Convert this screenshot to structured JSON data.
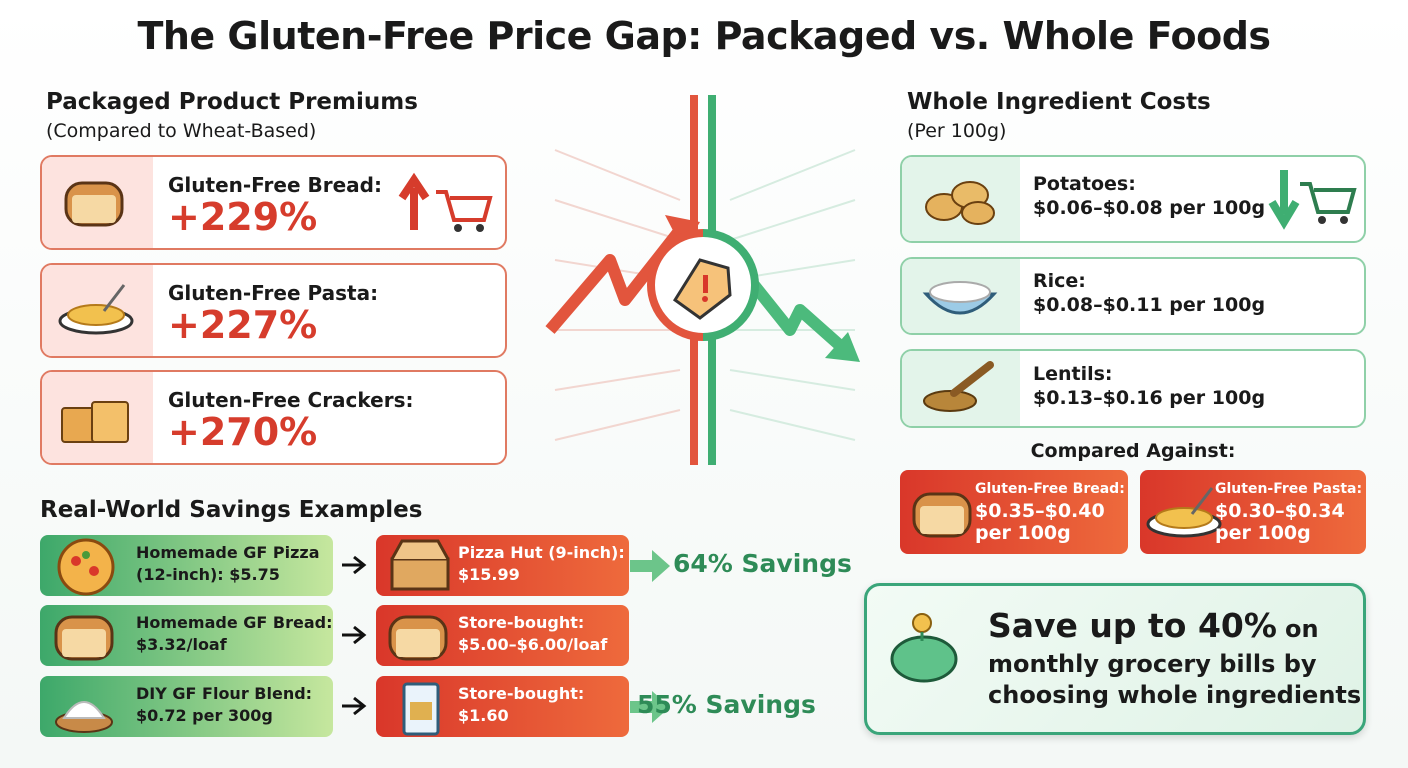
{
  "title": "The Gluten-Free Price Gap: Packaged vs. Whole Foods",
  "packaged": {
    "heading": "Packaged Product Premiums",
    "subheading": "(Compared to Wheat-Based)",
    "items": [
      {
        "label": "Gluten-Free Bread:",
        "premium": "+229%"
      },
      {
        "label": "Gluten-Free Pasta:",
        "premium": "+227%"
      },
      {
        "label": "Gluten-Free Crackers:",
        "premium": "+270%"
      }
    ]
  },
  "whole": {
    "heading": "Whole Ingredient Costs",
    "subheading": "(Per 100g)",
    "items": [
      {
        "name": "Potatoes:",
        "cost": "$0.06–$0.08 per 100g"
      },
      {
        "name": "Rice:",
        "cost": "$0.08–$0.11 per 100g"
      },
      {
        "name": "Lentils:",
        "cost": "$0.13–$0.16 per 100g"
      }
    ]
  },
  "compared": {
    "heading": "Compared Against:",
    "items": [
      {
        "name": "Gluten-Free Bread:",
        "cost": [
          "$0.35–$0.40",
          "per 100g"
        ]
      },
      {
        "name": "Gluten-Free Pasta:",
        "cost": [
          "$0.30–$0.34",
          "per 100g"
        ]
      }
    ]
  },
  "savings": {
    "heading": "Real-World Savings Examples",
    "rows": [
      {
        "homemade": [
          "Homemade GF Pizza",
          "(12-inch): $5.75"
        ],
        "store": [
          "Pizza Hut (9-inch):",
          "$15.99"
        ],
        "result": "64% Savings"
      },
      {
        "homemade": [
          "Homemade GF Bread:",
          "$3.32/loaf"
        ],
        "store": [
          "Store-bought:",
          "$5.00–$6.00/loaf"
        ]
      },
      {
        "homemade": [
          "DIY GF Flour Blend:",
          "$0.72 per 300g"
        ],
        "store": [
          "Store-bought:",
          "$1.60"
        ],
        "result": "55% Savings"
      }
    ]
  },
  "callout": {
    "highlight": "Save up to 40%",
    "joiner": "on",
    "lines": [
      "monthly grocery bills by",
      "choosing whole ingredients"
    ]
  }
}
